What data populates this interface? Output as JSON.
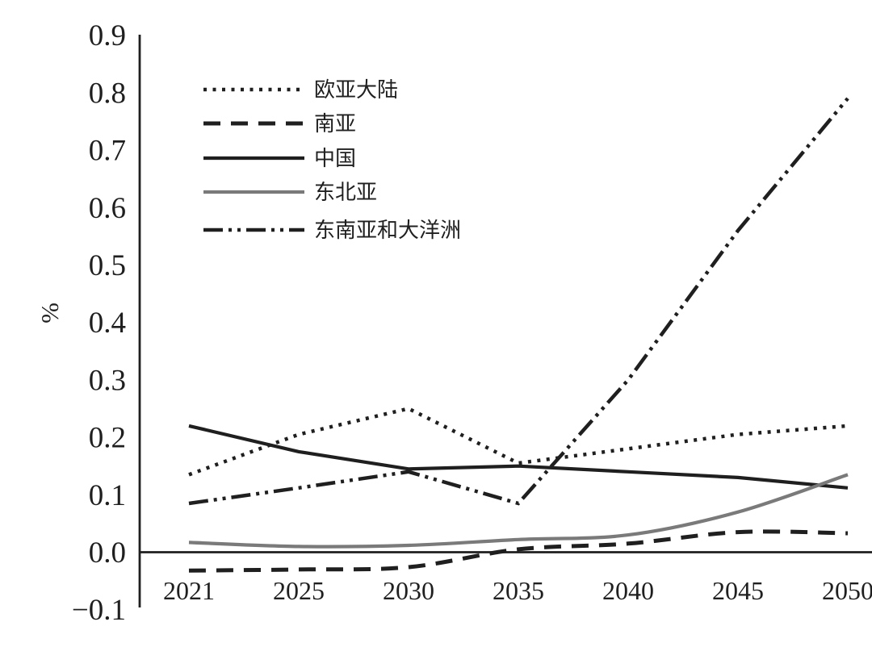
{
  "figure": {
    "background": "#ffffff",
    "ink_color": "#1f1f1f",
    "gray_color": "#7a7a7a"
  },
  "chart_data": {
    "type": "line",
    "title": "",
    "xlabel": "",
    "ylabel": "%",
    "ylim": [
      -0.1,
      0.9
    ],
    "grid": false,
    "legend_position": "upper-left-inside",
    "categories": [
      "2021",
      "2025",
      "2030",
      "2035",
      "2040",
      "2045",
      "2050"
    ],
    "y_ticks": [
      {
        "label": "0.9",
        "value": 0.9
      },
      {
        "label": "0.8",
        "value": 0.8
      },
      {
        "label": "0.7",
        "value": 0.7
      },
      {
        "label": "0.6",
        "value": 0.6
      },
      {
        "label": "0.5",
        "value": 0.5
      },
      {
        "label": "0.4",
        "value": 0.4
      },
      {
        "label": "0.3",
        "value": 0.3
      },
      {
        "label": "0.2",
        "value": 0.2
      },
      {
        "label": "0.1",
        "value": 0.1
      },
      {
        "label": "0.0",
        "value": 0.0
      },
      {
        "label": "−0.1",
        "value": -0.1
      }
    ],
    "series": [
      {
        "name": "欧亚大陆",
        "slug": "eurasia",
        "line_style": "dotted",
        "color": "#1f1f1f",
        "smooth": false,
        "values": [
          0.135,
          0.205,
          0.25,
          0.155,
          0.18,
          0.205,
          0.22
        ]
      },
      {
        "name": "南亚",
        "slug": "south-asia",
        "line_style": "dashed",
        "color": "#1f1f1f",
        "smooth": true,
        "values": [
          -0.032,
          -0.03,
          -0.026,
          0.005,
          0.015,
          0.035,
          0.033
        ]
      },
      {
        "name": "中国",
        "slug": "china",
        "line_style": "solid",
        "color": "#1f1f1f",
        "smooth": false,
        "values": [
          0.22,
          0.175,
          0.145,
          0.15,
          0.14,
          0.13,
          0.112
        ]
      },
      {
        "name": "东北亚",
        "slug": "northeast-asia",
        "line_style": "solid",
        "color": "#7a7a7a",
        "smooth": true,
        "values": [
          0.017,
          0.01,
          0.012,
          0.022,
          0.03,
          0.07,
          0.135
        ]
      },
      {
        "name": "东南亚和大洋洲",
        "slug": "se-asia-oceania",
        "line_style": "dash-dot-dot",
        "color": "#1f1f1f",
        "smooth": false,
        "values": [
          0.085,
          0.112,
          0.14,
          0.085,
          0.3,
          0.56,
          0.79
        ]
      }
    ]
  }
}
